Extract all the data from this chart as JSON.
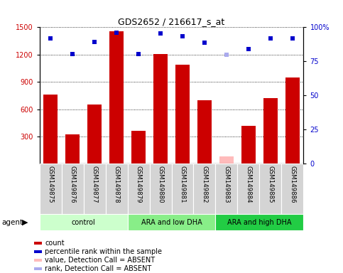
{
  "title": "GDS2652 / 216617_s_at",
  "samples": [
    "GSM149875",
    "GSM149876",
    "GSM149877",
    "GSM149878",
    "GSM149879",
    "GSM149880",
    "GSM149881",
    "GSM149882",
    "GSM149883",
    "GSM149884",
    "GSM149885",
    "GSM149886"
  ],
  "bar_values": [
    760,
    320,
    650,
    1460,
    360,
    1210,
    1090,
    700,
    80,
    420,
    720,
    950
  ],
  "bar_absent": [
    false,
    false,
    false,
    false,
    false,
    false,
    false,
    false,
    true,
    false,
    false,
    false
  ],
  "dot_values": [
    1380,
    1210,
    1340,
    1440,
    1210,
    1430,
    1400,
    1330,
    1200,
    1260,
    1380,
    1380
  ],
  "dot_absent": [
    false,
    false,
    false,
    false,
    false,
    false,
    false,
    false,
    true,
    false,
    false,
    false
  ],
  "ylim_left": [
    0,
    1500
  ],
  "ylim_right": [
    0,
    100
  ],
  "yticks_left": [
    300,
    600,
    900,
    1200,
    1500
  ],
  "yticks_right": [
    0,
    25,
    50,
    75,
    100
  ],
  "groups": [
    {
      "label": "control",
      "start": 0,
      "end": 3,
      "color": "#ccffcc"
    },
    {
      "label": "ARA and low DHA",
      "start": 4,
      "end": 7,
      "color": "#88ee88"
    },
    {
      "label": "ARA and high DHA",
      "start": 8,
      "end": 11,
      "color": "#22cc44"
    }
  ],
  "bar_color": "#cc0000",
  "bar_absent_color": "#ffbbbb",
  "dot_color": "#0000cc",
  "dot_absent_color": "#aaaaee",
  "bg_color": "#ffffff",
  "agent_label": "agent",
  "legend_items": [
    {
      "color": "#cc0000",
      "label": "count"
    },
    {
      "color": "#0000cc",
      "label": "percentile rank within the sample"
    },
    {
      "color": "#ffbbbb",
      "label": "value, Detection Call = ABSENT"
    },
    {
      "color": "#aaaaee",
      "label": "rank, Detection Call = ABSENT"
    }
  ]
}
